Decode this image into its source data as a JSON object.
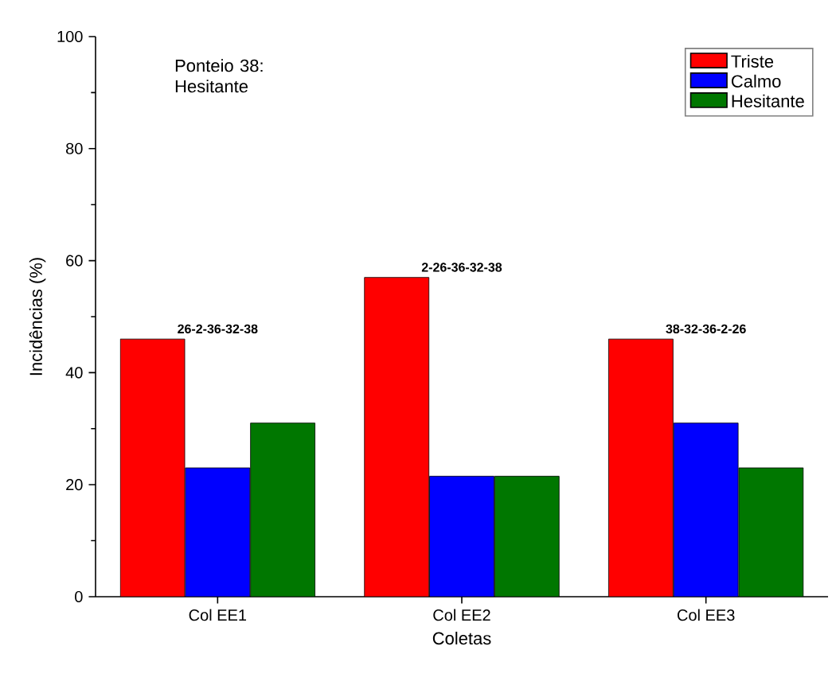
{
  "chart_data": {
    "type": "bar",
    "title": "Ponteio 38: Hesitante",
    "xlabel": "Coletas",
    "ylabel": "Incidências (%)",
    "categories": [
      "Col EE1",
      "Col EE2",
      "Col EE3"
    ],
    "series": [
      {
        "name": "Triste",
        "color": "#ff0000",
        "values": [
          46,
          57,
          46
        ]
      },
      {
        "name": "Calmo",
        "color": "#0000ff",
        "values": [
          23,
          21.5,
          31
        ]
      },
      {
        "name": "Hesitante",
        "color": "#007700",
        "values": [
          31,
          21.5,
          23
        ]
      }
    ],
    "ylim": [
      0,
      100
    ],
    "yticks": [
      0,
      20,
      40,
      60,
      80,
      100
    ],
    "legend": "top right",
    "grid": false,
    "annotations": [
      "26-2-36-32-38",
      "2-26-36-32-38",
      "38-32-36-2-26"
    ]
  }
}
